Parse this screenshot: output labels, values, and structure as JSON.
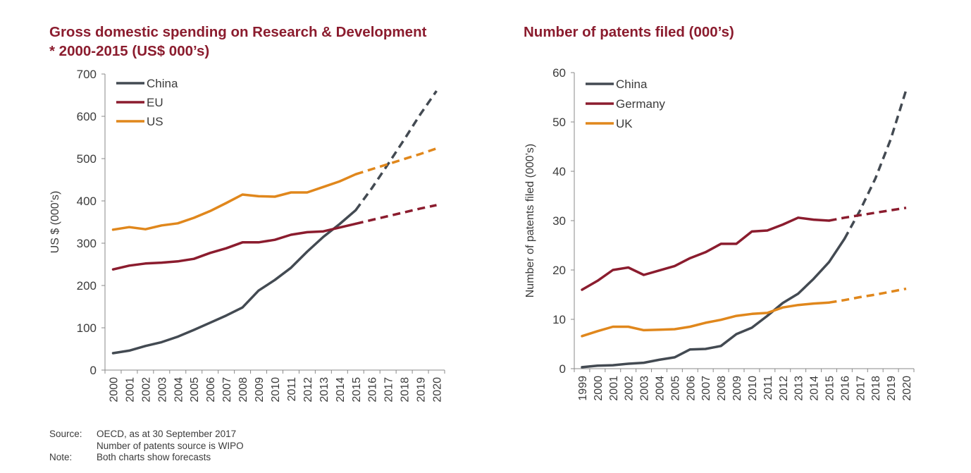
{
  "left_title_line1": "Gross domestic spending on Research & Development",
  "left_title_line2": "* 2000-2015 (US$ 000’s)",
  "right_title": "Number of patents filed (000’s)",
  "footer": {
    "source_label": "Source:",
    "source_text": "OECD, as at 30 September 2017",
    "source_text2": "Number of patents source is WIPO",
    "note_label": "Note:",
    "note_text": "Both charts show forecasts"
  },
  "colors": {
    "China": "#434a52",
    "EU": "#8b1c2e",
    "Germany": "#8b1c2e",
    "US": "#e0871c",
    "UK": "#e0871c",
    "title": "#8b1c2e"
  },
  "chart_data": [
    {
      "type": "line",
      "title": "Gross domestic spending on Research & Development * 2000-2015 (US$ 000’s)",
      "ylabel": "US $ (000’s)",
      "xlabel": "",
      "ylim": [
        0,
        700
      ],
      "yticks": [
        0,
        100,
        200,
        300,
        400,
        500,
        600,
        700
      ],
      "x": [
        "2000",
        "2001",
        "2002",
        "2003",
        "2004",
        "2005",
        "2006",
        "2007",
        "2008",
        "2009",
        "2010",
        "2011",
        "2012",
        "2013",
        "2014",
        "2015",
        "2016",
        "2017",
        "2018",
        "2019",
        "2020"
      ],
      "forecast_start": "2015",
      "legend": "top-left",
      "grid": false,
      "series": [
        {
          "name": "China",
          "values": [
            40,
            46,
            57,
            66,
            79,
            95,
            112,
            129,
            148,
            188,
            213,
            242,
            280,
            315,
            345,
            378,
            430,
            487,
            545,
            605,
            660
          ]
        },
        {
          "name": "EU",
          "values": [
            238,
            247,
            252,
            254,
            257,
            263,
            277,
            288,
            302,
            302,
            308,
            320,
            326,
            328,
            337,
            346,
            355,
            364,
            373,
            382,
            390
          ]
        },
        {
          "name": "US",
          "values": [
            332,
            338,
            333,
            342,
            347,
            360,
            376,
            395,
            415,
            411,
            410,
            420,
            420,
            433,
            446,
            463,
            475,
            487,
            499,
            511,
            524
          ]
        }
      ]
    },
    {
      "type": "line",
      "title": "Number of patents filed (000’s)",
      "ylabel": "Number of patents filed (000’s)",
      "xlabel": "",
      "ylim": [
        0,
        60
      ],
      "yticks": [
        0,
        10,
        20,
        30,
        40,
        50,
        60
      ],
      "x": [
        "1999",
        "2000",
        "2001",
        "2002",
        "2003",
        "2004",
        "2005",
        "2006",
        "2007",
        "2008",
        "2009",
        "2010",
        "2011",
        "2012",
        "2013",
        "2014",
        "2015",
        "2016",
        "2017",
        "2018",
        "2019",
        "2020"
      ],
      "forecast_start": "2015",
      "forecast_start_by_series": {
        "China": "2016"
      },
      "legend": "top-left",
      "grid": false,
      "series": [
        {
          "name": "China",
          "values": [
            0.3,
            0.6,
            0.7,
            1.0,
            1.2,
            1.8,
            2.3,
            3.9,
            4.0,
            4.6,
            7.0,
            8.3,
            10.7,
            13.3,
            15.2,
            18.2,
            21.6,
            26.3,
            32.0,
            38.5,
            46.5,
            56.5
          ]
        },
        {
          "name": "Germany",
          "values": [
            16.0,
            17.8,
            20.0,
            20.5,
            19.0,
            19.9,
            20.8,
            22.4,
            23.6,
            25.3,
            25.3,
            27.8,
            28.0,
            29.2,
            30.6,
            30.2,
            30.0,
            30.6,
            31.1,
            31.6,
            32.1,
            32.6
          ]
        },
        {
          "name": "UK",
          "values": [
            6.6,
            7.6,
            8.5,
            8.5,
            7.8,
            7.9,
            8.0,
            8.5,
            9.3,
            9.9,
            10.7,
            11.1,
            11.3,
            12.4,
            12.9,
            13.2,
            13.4,
            13.9,
            14.5,
            15.0,
            15.6,
            16.2
          ]
        }
      ]
    }
  ]
}
